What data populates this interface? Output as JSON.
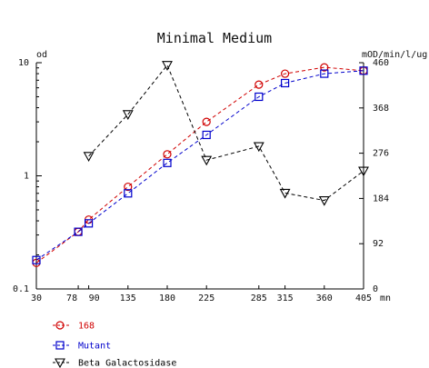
{
  "chart_data": {
    "type": "line",
    "title": "Minimal Medium",
    "ylabel_left": "od",
    "ylabel_right": "mOD/min/l/ug",
    "xlabel_unit": "mn",
    "x_ticks": [
      "30",
      "78",
      "90",
      "135",
      "180",
      "225",
      "285",
      "315",
      "360",
      "405"
    ],
    "y_left_scale": "log",
    "y_left_lim": [
      0.1,
      10
    ],
    "y_left_ticks": [
      "0.1",
      "1",
      "10"
    ],
    "y_right_lim": [
      0,
      460
    ],
    "y_right_ticks": [
      "0",
      "92",
      "184",
      "276",
      "368",
      "460"
    ],
    "grid": false,
    "legend_position": "bottom-left",
    "series": [
      {
        "name": "168",
        "axis": "left",
        "color": "#d00000",
        "marker": "circle",
        "x": [
          30,
          78,
          90,
          135,
          180,
          225,
          285,
          315,
          360,
          405
        ],
        "y": [
          0.17,
          0.32,
          0.41,
          0.8,
          1.55,
          3.0,
          6.4,
          8.0,
          9.1,
          8.5
        ]
      },
      {
        "name": "Mutant",
        "axis": "left",
        "color": "#0000cc",
        "marker": "square",
        "x": [
          30,
          78,
          90,
          135,
          180,
          225,
          285,
          315,
          360,
          405
        ],
        "y": [
          0.18,
          0.32,
          0.38,
          0.7,
          1.3,
          2.3,
          5.0,
          6.6,
          8.0,
          8.5
        ]
      },
      {
        "name": "Beta Galactosidase",
        "axis": "right",
        "color": "#000000",
        "marker": "triangle-down",
        "x": [
          90,
          135,
          180,
          225,
          285,
          315,
          360,
          405
        ],
        "y": [
          270,
          355,
          455,
          262,
          290,
          195,
          180,
          240
        ]
      }
    ]
  }
}
